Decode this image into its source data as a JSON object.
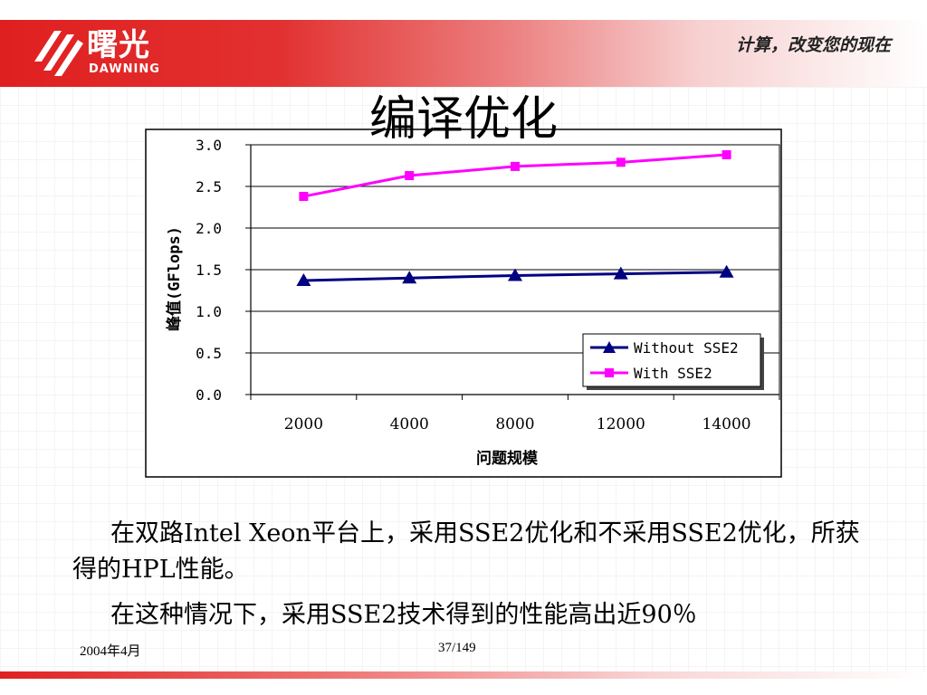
{
  "header": {
    "brand_cn": "曙光",
    "brand_en": "DAWNING",
    "slogan": "计算，改变您的现在"
  },
  "slide": {
    "title": "编译优化",
    "paragraph1": "在双路Intel Xeon平台上，采用SSE2优化和不采用SSE2优化，所获得的HPL性能。",
    "paragraph2": "在这种情况下，采用SSE2技术得到的性能高出近90％"
  },
  "footer": {
    "date": "2004年4月",
    "page": "37/149"
  },
  "colors": {
    "series_without": "#000080",
    "series_with": "#ff00ff",
    "brand_red": "#e02020"
  },
  "chart_data": {
    "type": "line",
    "categories": [
      "2000",
      "4000",
      "8000",
      "12000",
      "14000"
    ],
    "series": [
      {
        "name": "Without SSE2",
        "values": [
          1.37,
          1.4,
          1.43,
          1.45,
          1.47
        ],
        "color": "#000080",
        "marker": "triangle"
      },
      {
        "name": "With SSE2",
        "values": [
          2.38,
          2.63,
          2.74,
          2.79,
          2.88
        ],
        "color": "#ff00ff",
        "marker": "square"
      }
    ],
    "xlabel": "问题规模",
    "ylabel": "峰值(GFlops)",
    "ylim": [
      0,
      3.0
    ],
    "yticks": [
      "0.0",
      "0.5",
      "1.0",
      "1.5",
      "2.0",
      "2.5",
      "3.0"
    ],
    "grid": true,
    "legend": "bottom-right"
  }
}
